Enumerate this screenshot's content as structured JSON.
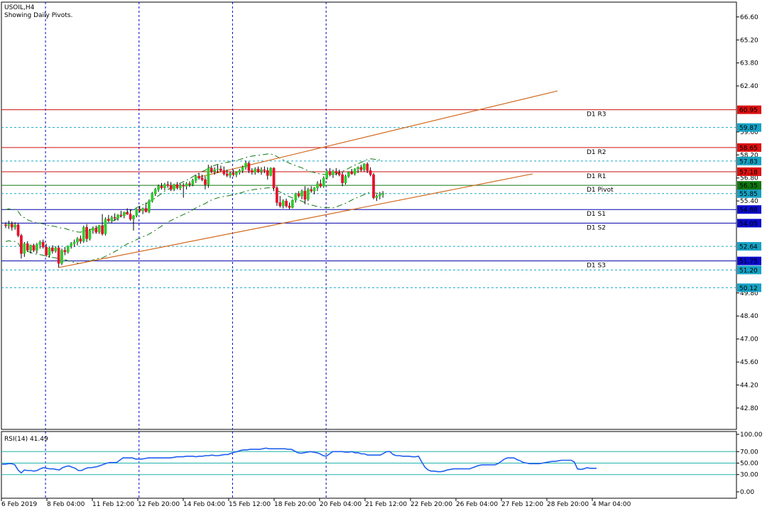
{
  "window": {
    "symbol_timeframe": "USOIL,H4",
    "indicator_note": "Showing Daily Pivots."
  },
  "colors": {
    "bull": "#2ecc2e",
    "bear": "#e8102a",
    "pivot_resistance": "#cc1111",
    "pivot_support": "#0000aa",
    "pivot_center": "#117711",
    "dashed_levels": "#1aa6c8",
    "trendline": "#d2691e",
    "envelope": "#117711",
    "vertical_separators": "#0000cc",
    "rsi_line": "#1e5ff0",
    "rsi_levels": "#20b2aa"
  },
  "chart_data": {
    "type": "candlestick",
    "price_axis": {
      "ylim": [
        41.5,
        67.5
      ],
      "ticks": [
        66.6,
        65.2,
        63.8,
        62.4,
        59.6,
        58.2,
        56.8,
        55.4,
        49.8,
        48.4,
        47.0,
        45.6,
        44.2,
        42.8
      ]
    },
    "time_axis": {
      "labels": [
        "6 Feb 2019",
        "8 Feb 04:00",
        "11 Feb 12:00",
        "12 Feb 20:00",
        "14 Feb 04:00",
        "15 Feb 12:00",
        "18 Feb 20:00",
        "20 Feb 04:00",
        "21 Feb 12:00",
        "22 Feb 20:00",
        "26 Feb 04:00",
        "27 Feb 12:00",
        "28 Feb 20:00",
        "4 Mar 04:00"
      ],
      "bars_visible": 124
    },
    "pivot_levels": [
      {
        "name": "D1 R3",
        "value": 60.95,
        "tag": "60.95",
        "kind": "resistance"
      },
      {
        "name": "D1 R2",
        "value": 58.65,
        "tag": "58.65",
        "kind": "resistance"
      },
      {
        "name": "D1 R1",
        "value": 57.18,
        "tag": "57.18",
        "kind": "resistance"
      },
      {
        "name": "D1 Pivot",
        "value": 56.35,
        "tag": "56.35",
        "kind": "center"
      },
      {
        "name": "D1 S1",
        "value": 54.88,
        "tag": "54.88",
        "kind": "support"
      },
      {
        "name": "D1 S2",
        "value": 54.05,
        "tag": "54.05",
        "kind": "support"
      },
      {
        "name": "D1 S3",
        "value": 51.75,
        "tag": "51.75",
        "kind": "support"
      }
    ],
    "dashed_levels": [
      {
        "value": 59.87,
        "tag": "59.87"
      },
      {
        "value": 57.83,
        "tag": "57.83"
      },
      {
        "value": 55.85,
        "tag": "55.85"
      },
      {
        "value": 52.64,
        "tag": "52.64"
      },
      {
        "value": 51.2,
        "tag": "51.20"
      },
      {
        "value": 50.12,
        "tag": "50.12"
      }
    ],
    "candles": [
      [
        53.95,
        54.1,
        53.75,
        53.9
      ],
      [
        53.9,
        54.2,
        53.7,
        54.0
      ],
      [
        54.0,
        54.15,
        53.6,
        53.8
      ],
      [
        53.8,
        54.1,
        53.65,
        53.95
      ],
      [
        53.95,
        54.05,
        53.2,
        53.3
      ],
      [
        53.3,
        53.4,
        51.9,
        52.2
      ],
      [
        52.2,
        52.9,
        52.0,
        52.8
      ],
      [
        52.8,
        52.95,
        52.3,
        52.4
      ],
      [
        52.4,
        52.75,
        52.2,
        52.7
      ],
      [
        52.7,
        52.8,
        52.3,
        52.4
      ],
      [
        52.4,
        52.85,
        52.2,
        52.75
      ],
      [
        52.75,
        53.0,
        52.5,
        52.9
      ],
      [
        52.9,
        53.05,
        52.5,
        52.6
      ],
      [
        52.6,
        52.8,
        52.0,
        52.1
      ],
      [
        52.1,
        52.6,
        51.95,
        52.55
      ],
      [
        52.55,
        52.7,
        52.2,
        52.35
      ],
      [
        52.35,
        52.65,
        52.25,
        52.55
      ],
      [
        52.55,
        52.7,
        51.35,
        51.6
      ],
      [
        51.6,
        52.5,
        51.5,
        52.4
      ],
      [
        52.4,
        52.6,
        52.1,
        52.3
      ],
      [
        52.3,
        52.7,
        52.2,
        52.65
      ],
      [
        52.65,
        52.9,
        52.5,
        52.8
      ],
      [
        52.8,
        53.05,
        52.6,
        52.9
      ],
      [
        52.9,
        53.2,
        52.7,
        53.1
      ],
      [
        53.1,
        53.3,
        52.8,
        52.95
      ],
      [
        52.95,
        53.9,
        52.85,
        53.8
      ],
      [
        53.8,
        54.0,
        52.9,
        53.1
      ],
      [
        53.1,
        53.7,
        53.0,
        53.6
      ],
      [
        53.6,
        53.85,
        53.4,
        53.75
      ],
      [
        53.75,
        53.9,
        53.4,
        53.5
      ],
      [
        53.5,
        53.95,
        53.4,
        53.9
      ],
      [
        53.9,
        54.6,
        53.3,
        53.4
      ],
      [
        53.4,
        54.4,
        53.3,
        54.3
      ],
      [
        54.3,
        54.55,
        54.1,
        54.2
      ],
      [
        54.2,
        54.5,
        54.05,
        54.4
      ],
      [
        54.4,
        54.65,
        54.2,
        54.35
      ],
      [
        54.35,
        54.6,
        54.2,
        54.55
      ],
      [
        54.55,
        54.8,
        54.4,
        54.5
      ],
      [
        54.5,
        54.75,
        54.35,
        54.7
      ],
      [
        54.7,
        54.95,
        54.55,
        54.6
      ],
      [
        54.6,
        54.9,
        54.2,
        54.3
      ],
      [
        54.3,
        54.55,
        53.6,
        54.5
      ],
      [
        54.5,
        54.95,
        54.4,
        54.9
      ],
      [
        54.9,
        55.1,
        54.7,
        54.8
      ],
      [
        54.8,
        55.0,
        54.6,
        54.95
      ],
      [
        54.95,
        55.3,
        54.7,
        54.75
      ],
      [
        54.75,
        55.5,
        54.65,
        55.4
      ],
      [
        55.4,
        55.95,
        55.3,
        55.85
      ],
      [
        55.85,
        56.2,
        55.7,
        56.1
      ],
      [
        56.1,
        56.4,
        55.95,
        56.3
      ],
      [
        56.3,
        56.5,
        56.1,
        56.2
      ],
      [
        56.2,
        56.5,
        56.05,
        56.4
      ],
      [
        56.4,
        56.6,
        56.2,
        56.35
      ],
      [
        56.35,
        56.55,
        56.0,
        56.1
      ],
      [
        56.1,
        56.45,
        56.0,
        56.4
      ],
      [
        56.4,
        56.55,
        56.1,
        56.2
      ],
      [
        56.2,
        56.45,
        56.05,
        56.35
      ],
      [
        56.35,
        56.5,
        55.6,
        56.3
      ],
      [
        56.3,
        56.55,
        56.1,
        56.45
      ],
      [
        56.45,
        56.6,
        56.25,
        56.4
      ],
      [
        56.4,
        56.75,
        56.3,
        56.65
      ],
      [
        56.65,
        57.0,
        56.5,
        56.9
      ],
      [
        56.9,
        57.1,
        56.7,
        56.8
      ],
      [
        56.8,
        57.0,
        56.6,
        56.7
      ],
      [
        56.7,
        56.9,
        56.1,
        56.4
      ],
      [
        56.4,
        57.6,
        56.2,
        57.4
      ],
      [
        57.4,
        57.55,
        57.1,
        57.2
      ],
      [
        57.2,
        57.45,
        57.0,
        57.3
      ],
      [
        57.3,
        57.6,
        57.1,
        57.35
      ],
      [
        57.35,
        57.55,
        57.15,
        57.25
      ],
      [
        57.25,
        57.5,
        56.95,
        57.05
      ],
      [
        57.05,
        57.3,
        56.85,
        56.95
      ],
      [
        56.95,
        57.2,
        56.8,
        57.1
      ],
      [
        57.1,
        57.3,
        56.9,
        57.0
      ],
      [
        57.0,
        57.2,
        56.85,
        57.15
      ],
      [
        57.15,
        57.35,
        57.0,
        57.25
      ],
      [
        57.25,
        57.55,
        57.1,
        57.45
      ],
      [
        57.45,
        57.85,
        57.3,
        57.7
      ],
      [
        57.7,
        57.8,
        57.1,
        57.25
      ],
      [
        57.25,
        57.4,
        57.0,
        57.15
      ],
      [
        57.15,
        57.45,
        57.0,
        57.35
      ],
      [
        57.35,
        57.5,
        57.1,
        57.2
      ],
      [
        57.2,
        57.45,
        57.0,
        57.3
      ],
      [
        57.3,
        57.5,
        57.1,
        57.25
      ],
      [
        57.25,
        57.45,
        56.7,
        56.95
      ],
      [
        56.95,
        57.45,
        56.9,
        57.4
      ],
      [
        57.4,
        57.45,
        56.0,
        56.2
      ],
      [
        56.2,
        56.3,
        55.1,
        55.3
      ],
      [
        55.3,
        55.7,
        55.0,
        55.1
      ],
      [
        55.1,
        55.5,
        54.95,
        55.4
      ],
      [
        55.4,
        55.55,
        55.0,
        55.1
      ],
      [
        55.1,
        55.3,
        54.9,
        55.0
      ],
      [
        55.0,
        55.5,
        54.95,
        55.45
      ],
      [
        55.45,
        55.9,
        55.3,
        55.85
      ],
      [
        55.85,
        56.0,
        55.6,
        55.7
      ],
      [
        55.7,
        56.1,
        55.5,
        56.0
      ],
      [
        56.0,
        56.3,
        55.2,
        55.5
      ],
      [
        55.5,
        56.2,
        55.4,
        56.1
      ],
      [
        56.1,
        56.3,
        55.9,
        56.0
      ],
      [
        56.0,
        56.25,
        55.8,
        56.2
      ],
      [
        56.2,
        56.6,
        56.0,
        56.45
      ],
      [
        56.45,
        56.7,
        56.2,
        56.3
      ],
      [
        56.3,
        56.9,
        56.2,
        56.8
      ],
      [
        56.8,
        57.3,
        56.7,
        57.2
      ],
      [
        57.2,
        57.4,
        56.9,
        57.0
      ],
      [
        57.0,
        57.3,
        56.8,
        57.2
      ],
      [
        57.2,
        57.4,
        56.95,
        57.1
      ],
      [
        57.1,
        57.3,
        56.9,
        57.0
      ],
      [
        57.0,
        57.2,
        56.3,
        56.5
      ],
      [
        56.5,
        57.0,
        56.4,
        56.9
      ],
      [
        56.9,
        57.2,
        56.8,
        57.15
      ],
      [
        57.15,
        57.35,
        57.0,
        57.05
      ],
      [
        57.05,
        57.4,
        56.95,
        57.35
      ],
      [
        57.35,
        57.5,
        57.1,
        57.45
      ],
      [
        57.45,
        57.6,
        57.2,
        57.3
      ],
      [
        57.3,
        57.7,
        57.2,
        57.65
      ],
      [
        57.65,
        57.75,
        57.1,
        57.25
      ],
      [
        57.25,
        57.45,
        56.9,
        57.0
      ],
      [
        57.0,
        57.1,
        55.5,
        55.6
      ],
      [
        55.6,
        55.8,
        55.4,
        55.7
      ],
      [
        55.7,
        55.95,
        55.5,
        55.8
      ],
      [
        55.8,
        56.0,
        55.6,
        55.85
      ]
    ],
    "rsi": {
      "label": "RSI(14) 41.49",
      "period": 14,
      "ylim": [
        0,
        100
      ],
      "ticks": [
        "100.00",
        "70.00",
        "50.00",
        "30.00",
        "0.00"
      ],
      "levels": [
        70,
        50,
        30
      ],
      "values": [
        48,
        48,
        49,
        49,
        47,
        38,
        33,
        38,
        37,
        37,
        36,
        37,
        40,
        42,
        41,
        40,
        40,
        39,
        38,
        42,
        44,
        45,
        43,
        41,
        37,
        37,
        40,
        42,
        42,
        43,
        44,
        46,
        48,
        50,
        51,
        51,
        51,
        55,
        59,
        59,
        59,
        59,
        57,
        57,
        57,
        58,
        59,
        59,
        59,
        59,
        59,
        59,
        59,
        59,
        60,
        61,
        61,
        61,
        62,
        62,
        62,
        61,
        62,
        62,
        63,
        63,
        64,
        63,
        63,
        64,
        65,
        65,
        67,
        69,
        70,
        72,
        73,
        73,
        74,
        74,
        74,
        74,
        75,
        76,
        75,
        75,
        75,
        75,
        75,
        75,
        74,
        74,
        71,
        68,
        67,
        68,
        69,
        70,
        69,
        68,
        66,
        63,
        62,
        66,
        70,
        70,
        70,
        70,
        69,
        69,
        70,
        68,
        68,
        66,
        66,
        64,
        64,
        64,
        64,
        64,
        67,
        70,
        70,
        65,
        63,
        63,
        62,
        62,
        62,
        61,
        61,
        62,
        52,
        43,
        38,
        36,
        36,
        35,
        35,
        36,
        38,
        39,
        40,
        40,
        40,
        40,
        40,
        40,
        42,
        44,
        46,
        47,
        47,
        47,
        47,
        47,
        49,
        53,
        57,
        59,
        59,
        59,
        56,
        54,
        51,
        50,
        49,
        49,
        49,
        49,
        50,
        51,
        52,
        53,
        53,
        54,
        55,
        55,
        55,
        55,
        52,
        40,
        39,
        40,
        42,
        41,
        41,
        41
      ]
    },
    "trendlines": [
      {
        "name": "upper-channel",
        "from": {
          "bar": 62,
          "price": 56.85
        },
        "to": {
          "bar": 177,
          "price": 62.1
        }
      },
      {
        "name": "lower-channel",
        "from": {
          "bar": 17,
          "price": 51.35
        },
        "to": {
          "bar": 169,
          "price": 57.05
        }
      }
    ],
    "separators_at_bar": [
      13,
      43,
      73,
      103
    ]
  }
}
